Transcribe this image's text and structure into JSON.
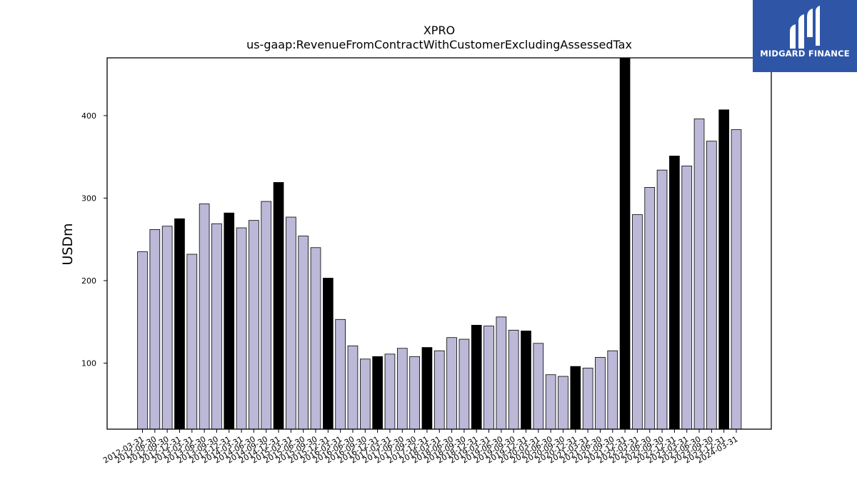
{
  "logo": {
    "text": "MIDGARD FINANCE"
  },
  "colors": {
    "bar_regular": "#bcb8d8",
    "bar_highlight": "#000000",
    "bar_edge": "#000000",
    "logo_bg": "#2f56a6"
  },
  "chart_data": {
    "type": "bar",
    "title": "XPRO",
    "subtitle": "us-gaap:RevenueFromContractWithCustomerExcludingAssessedTax",
    "ylabel": "USDm",
    "xlabel": "",
    "ylim": [
      20,
      470
    ],
    "yticks": [
      100,
      200,
      300,
      400
    ],
    "grid": false,
    "categories": [
      "2012-03-31",
      "2012-06-30",
      "2012-09-30",
      "2012-12-31",
      "2013-03-31",
      "2013-06-30",
      "2013-09-30",
      "2013-12-31",
      "2014-03-31",
      "2014-06-30",
      "2014-09-30",
      "2014-12-31",
      "2015-03-31",
      "2015-06-30",
      "2015-09-30",
      "2015-12-31",
      "2016-03-31",
      "2016-06-30",
      "2016-09-30",
      "2016-12-31",
      "2017-03-31",
      "2017-06-30",
      "2017-09-30",
      "2017-12-31",
      "2018-03-31",
      "2018-06-30",
      "2018-09-30",
      "2018-12-31",
      "2019-03-31",
      "2019-06-30",
      "2019-09-30",
      "2019-12-31",
      "2020-03-31",
      "2020-06-30",
      "2020-09-30",
      "2020-12-31",
      "2021-03-31",
      "2021-06-30",
      "2021-09-30",
      "2021-12-31",
      "2022-03-31",
      "2022-06-30",
      "2022-09-30",
      "2022-12-31",
      "2023-03-31",
      "2023-06-30",
      "2023-09-30",
      "2023-12-31",
      "2024-03-31"
    ],
    "values": [
      235,
      262,
      266,
      275,
      232,
      293,
      269,
      282,
      264,
      273,
      296,
      319,
      277,
      254,
      240,
      203,
      153,
      121,
      105,
      108,
      111,
      118,
      108,
      119,
      115,
      131,
      129,
      146,
      145,
      156,
      140,
      139,
      124,
      86,
      84,
      96,
      94,
      107,
      115,
      470,
      280,
      313,
      334,
      351,
      339,
      396,
      369,
      407,
      383
    ],
    "highlighted": [
      "2012-12-31",
      "2013-12-31",
      "2014-12-31",
      "2015-12-31",
      "2016-12-31",
      "2017-12-31",
      "2018-12-31",
      "2019-12-31",
      "2020-12-31",
      "2021-12-31",
      "2022-12-31",
      "2023-12-31"
    ]
  }
}
